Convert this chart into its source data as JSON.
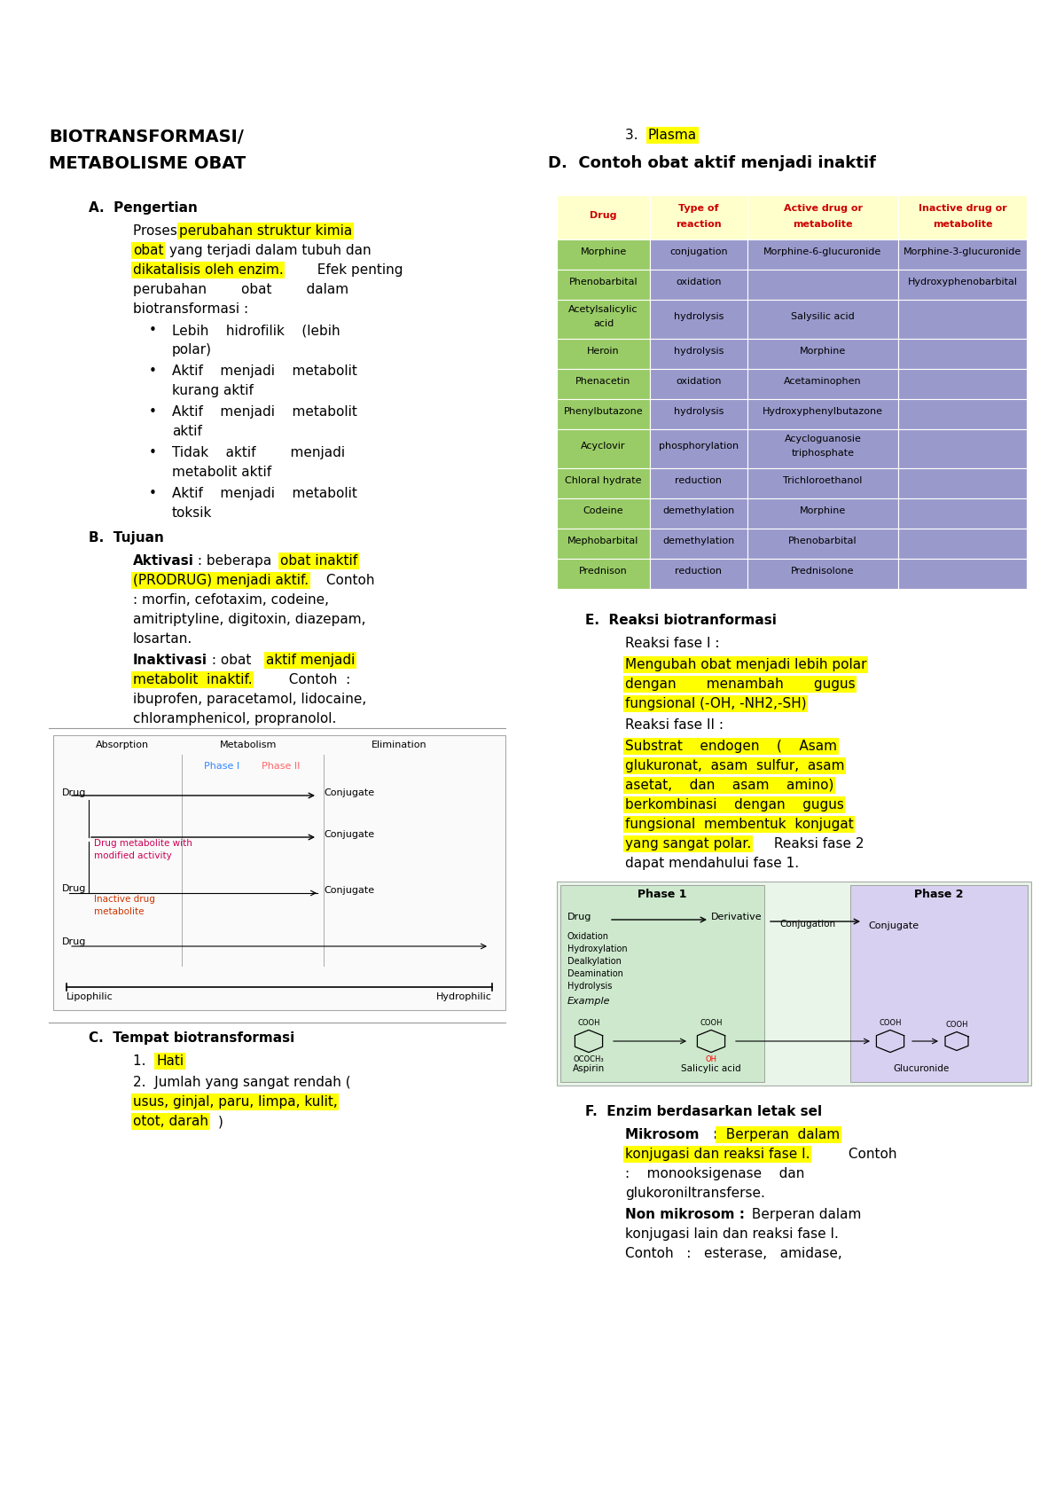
{
  "background_color": "#ffffff",
  "highlight_yellow": "#ffff00",
  "text_red": "#cc0000",
  "text_black": "#000000",
  "table_header_color": "#ffffcc",
  "table_row1_color": "#99cc66",
  "table_row2_color": "#9999cc",
  "table_headers": [
    "Drug",
    "Type of\nreaction",
    "Active drug or\nmetabolite",
    "Inactive drug or\nmetabolite"
  ],
  "table_rows": [
    [
      "Morphine",
      "conjugation",
      "Morphine-6-glucuronide",
      "Morphine-3-glucuronide"
    ],
    [
      "Phenobarbital",
      "oxidation",
      "",
      "Hydroxyphenobarbital"
    ],
    [
      "Acetylsalicylic\nacid",
      "hydrolysis",
      "Salysilic acid",
      ""
    ],
    [
      "Heroin",
      "hydrolysis",
      "Morphine",
      ""
    ],
    [
      "Phenacetin",
      "oxidation",
      "Acetaminophen",
      ""
    ],
    [
      "Phenylbutazone",
      "hydrolysis",
      "Hydroxyphenylbutazone",
      ""
    ],
    [
      "Acyclovir",
      "phosphorylation",
      "Acycloguanosie\ntriphosphate",
      ""
    ],
    [
      "Chloral hydrate",
      "reduction",
      "Trichloroethanol",
      ""
    ],
    [
      "Codeine",
      "demethylation",
      "Morphine",
      ""
    ],
    [
      "Mephobarbital",
      "demethylation",
      "Phenobarbital",
      ""
    ],
    [
      "Prednison",
      "reduction",
      "Prednisolone",
      ""
    ]
  ]
}
